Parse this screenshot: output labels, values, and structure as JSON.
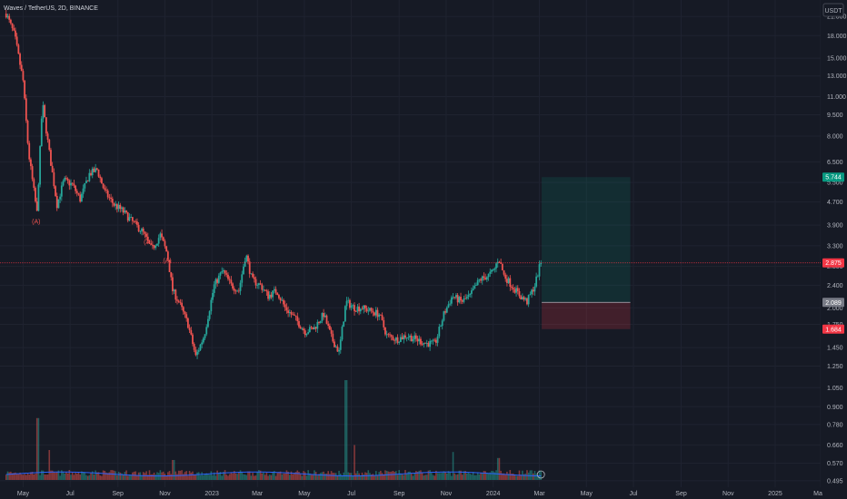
{
  "chart_data": {
    "type": "candlestick",
    "title": "Waves / TetherUS, 2D, BINANCE",
    "currency": "USDT",
    "y_scale": "log",
    "ylim": [
      0.47,
      24
    ],
    "y_ticks": [
      "21.000",
      "18.000",
      "15.000",
      "13.000",
      "11.000",
      "9.500",
      "8.000",
      "6.500",
      "5.500",
      "4.700",
      "3.900",
      "3.300",
      "2.800",
      "2.400",
      "2.000",
      "1.750",
      "1.450",
      "1.250",
      "1.050",
      "0.900",
      "0.780",
      "0.660",
      "0.570",
      "0.495"
    ],
    "x_ticks": [
      "May",
      "Jul",
      "Sep",
      "Nov",
      "2023",
      "Mar",
      "May",
      "Jul",
      "Sep",
      "Nov",
      "2024",
      "Mar",
      "May",
      "Jul",
      "Sep",
      "Nov",
      "2025",
      "Ma"
    ],
    "price_path": [
      {
        "date": "2022-04-09",
        "price": 21.5
      },
      {
        "date": "2022-04-20",
        "price": 18.0
      },
      {
        "date": "2022-05-01",
        "price": 12.5
      },
      {
        "date": "2022-05-08",
        "price": 7.0
      },
      {
        "date": "2022-05-19",
        "price": 4.3
      },
      {
        "date": "2022-05-26",
        "price": 10.5
      },
      {
        "date": "2022-06-04",
        "price": 7.0
      },
      {
        "date": "2022-06-14",
        "price": 4.6
      },
      {
        "date": "2022-06-23",
        "price": 5.6
      },
      {
        "date": "2022-07-04",
        "price": 5.4
      },
      {
        "date": "2022-07-14",
        "price": 4.8
      },
      {
        "date": "2022-07-26",
        "price": 5.9
      },
      {
        "date": "2022-08-05",
        "price": 6.1
      },
      {
        "date": "2022-08-15",
        "price": 5.1
      },
      {
        "date": "2022-08-27",
        "price": 4.6
      },
      {
        "date": "2022-09-06",
        "price": 4.4
      },
      {
        "date": "2022-09-20",
        "price": 4.0
      },
      {
        "date": "2022-10-03",
        "price": 3.7
      },
      {
        "date": "2022-10-15",
        "price": 3.2
      },
      {
        "date": "2022-10-26",
        "price": 3.6
      },
      {
        "date": "2022-11-04",
        "price": 3.1
      },
      {
        "date": "2022-11-11",
        "price": 2.3
      },
      {
        "date": "2022-11-19",
        "price": 2.1
      },
      {
        "date": "2022-12-01",
        "price": 1.75
      },
      {
        "date": "2022-12-11",
        "price": 1.35
      },
      {
        "date": "2022-12-22",
        "price": 1.6
      },
      {
        "date": "2023-01-04",
        "price": 2.4
      },
      {
        "date": "2023-01-15",
        "price": 2.7
      },
      {
        "date": "2023-01-26",
        "price": 2.4
      },
      {
        "date": "2023-02-05",
        "price": 2.3
      },
      {
        "date": "2023-02-14",
        "price": 3.1
      },
      {
        "date": "2023-02-22",
        "price": 2.5
      },
      {
        "date": "2023-03-05",
        "price": 2.4
      },
      {
        "date": "2023-03-15",
        "price": 2.2
      },
      {
        "date": "2023-03-26",
        "price": 2.3
      },
      {
        "date": "2023-04-06",
        "price": 2.0
      },
      {
        "date": "2023-04-18",
        "price": 1.85
      },
      {
        "date": "2023-05-02",
        "price": 1.65
      },
      {
        "date": "2023-05-14",
        "price": 1.7
      },
      {
        "date": "2023-05-26",
        "price": 1.9
      },
      {
        "date": "2023-06-06",
        "price": 1.55
      },
      {
        "date": "2023-06-15",
        "price": 1.4
      },
      {
        "date": "2023-06-24",
        "price": 2.1
      },
      {
        "date": "2023-07-05",
        "price": 2.0
      },
      {
        "date": "2023-07-15",
        "price": 2.0
      },
      {
        "date": "2023-07-26",
        "price": 1.95
      },
      {
        "date": "2023-08-06",
        "price": 1.9
      },
      {
        "date": "2023-08-16",
        "price": 1.6
      },
      {
        "date": "2023-08-29",
        "price": 1.55
      },
      {
        "date": "2023-09-10",
        "price": 1.6
      },
      {
        "date": "2023-09-23",
        "price": 1.55
      },
      {
        "date": "2023-10-06",
        "price": 1.5
      },
      {
        "date": "2023-10-18",
        "price": 1.5
      },
      {
        "date": "2023-10-29",
        "price": 1.9
      },
      {
        "date": "2023-11-09",
        "price": 2.2
      },
      {
        "date": "2023-11-21",
        "price": 2.1
      },
      {
        "date": "2023-12-02",
        "price": 2.2
      },
      {
        "date": "2023-12-14",
        "price": 2.5
      },
      {
        "date": "2023-12-26",
        "price": 2.6
      },
      {
        "date": "2024-01-02",
        "price": 2.7
      },
      {
        "date": "2024-01-08",
        "price": 3.0
      },
      {
        "date": "2024-01-15",
        "price": 2.6
      },
      {
        "date": "2024-01-25",
        "price": 2.4
      },
      {
        "date": "2024-02-05",
        "price": 2.2
      },
      {
        "date": "2024-02-14",
        "price": 2.1
      },
      {
        "date": "2024-02-24",
        "price": 2.4
      },
      {
        "date": "2024-03-03",
        "price": 2.9
      }
    ],
    "annotations": [
      {
        "date": "2022-05-18",
        "price": 3.95,
        "label": "(A)"
      },
      {
        "date": "2022-10-10",
        "price": 3.35,
        "label": "(A)"
      },
      {
        "date": "2022-11-04",
        "price": 2.88,
        "label": "(A)"
      }
    ],
    "price_line": {
      "value": 2.875,
      "label": "2.875",
      "color": "#f23645"
    },
    "position": {
      "start_date": "2024-03-04",
      "end_date": "2024-06-27",
      "entry": 2.09,
      "target": 5.744,
      "stop": 1.684,
      "labels": {
        "target": "5.744",
        "entry": "2.089",
        "stop": "1.684"
      },
      "target_color": "#089981",
      "stop_color": "#f23645"
    },
    "volume_peaks": [
      {
        "date": "2022-05-20",
        "rel": 0.62
      },
      {
        "date": "2022-06-04",
        "rel": 0.3
      },
      {
        "date": "2022-11-12",
        "rel": 0.2
      },
      {
        "date": "2023-06-24",
        "rel": 1.0
      },
      {
        "date": "2023-07-05",
        "rel": 0.35
      },
      {
        "date": "2023-11-10",
        "rel": 0.28
      },
      {
        "date": "2024-01-08",
        "rel": 0.22
      }
    ],
    "volume_max_rel_text": "",
    "colors": {
      "up": "#26a69a",
      "down": "#ef5350",
      "bg": "#161a25",
      "grid": "#1f2330",
      "vol_ma": "#2962ff"
    }
  }
}
